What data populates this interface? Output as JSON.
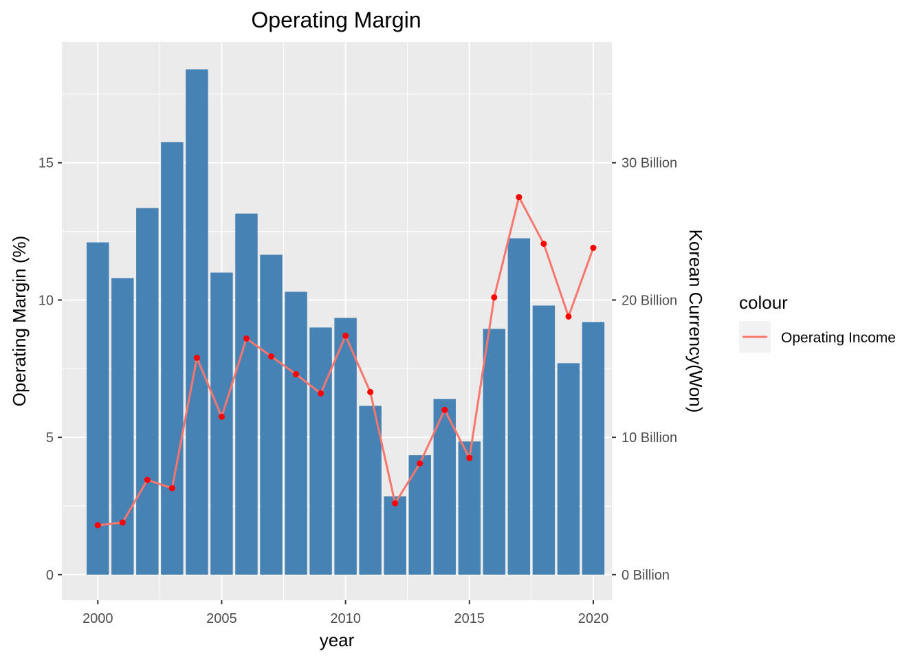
{
  "chart_data": {
    "type": "bar",
    "title": "Operating Margin",
    "xlabel": "year",
    "ylabel": "Operating Margin (%)",
    "y2label": "Korean Currency(Won)",
    "x": [
      2000,
      2001,
      2002,
      2003,
      2004,
      2005,
      2006,
      2007,
      2008,
      2009,
      2010,
      2011,
      2012,
      2013,
      2014,
      2015,
      2016,
      2017,
      2018,
      2019,
      2020
    ],
    "xticks": [
      "2000",
      "2005",
      "2010",
      "2015",
      "2020"
    ],
    "xlim": [
      1998.55,
      2020.75
    ],
    "ylim": [
      -0.93,
      19.4
    ],
    "yticks": [
      "0",
      "5",
      "10",
      "15"
    ],
    "y2ticks": [
      "0 Billion",
      "10 Billion",
      "20 Billion",
      "30 Billion"
    ],
    "y2_per_margin_unit": 2,
    "bar_color": "#4682b4",
    "line_color": "#f8766d",
    "point_color": "#ff0000",
    "panel_bg": "#ebebeb",
    "grid": true,
    "legend_position": "right",
    "series": [
      {
        "name": "",
        "type": "bar",
        "axis": "left",
        "values": [
          12.1,
          10.8,
          13.35,
          15.75,
          18.4,
          11.0,
          13.15,
          11.65,
          10.3,
          9.0,
          9.35,
          6.15,
          2.85,
          4.35,
          6.4,
          4.85,
          8.95,
          12.25,
          9.8,
          7.7,
          9.2
        ]
      },
      {
        "name": "Operating Income",
        "type": "line",
        "axis": "right",
        "unit": "Billion",
        "values": [
          3.6,
          3.8,
          6.9,
          6.3,
          15.8,
          11.5,
          17.2,
          15.9,
          14.6,
          13.2,
          17.4,
          13.3,
          5.2,
          8.1,
          12.0,
          8.5,
          20.2,
          27.5,
          24.1,
          18.8,
          23.8
        ]
      }
    ]
  },
  "legend": {
    "title": "colour",
    "label": "Operating Income"
  }
}
